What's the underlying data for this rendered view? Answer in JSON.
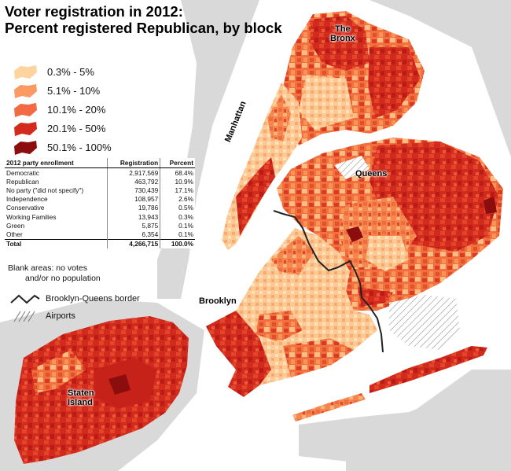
{
  "title": {
    "line1": "Voter registration in 2012:",
    "line2": "Percent registered Republican, by block"
  },
  "legend": {
    "items": [
      {
        "label": "0.3% - 5%",
        "color": "#fdd49e"
      },
      {
        "label": "5.1% - 10%",
        "color": "#fc9a64"
      },
      {
        "label": "10.1% - 20%",
        "color": "#f26a43"
      },
      {
        "label": "20.1% - 50%",
        "color": "#d32a1e"
      },
      {
        "label": "50.1% - 100%",
        "color": "#8c0d0d"
      }
    ]
  },
  "enrollment_table": {
    "headers": [
      "2012 party enrollment",
      "Registration",
      "Percent"
    ],
    "rows": [
      [
        "Democratic",
        "2,917,569",
        "68.4%"
      ],
      [
        "Republican",
        "463,792",
        "10.9%"
      ],
      [
        "No party (\"did not specify\")",
        "730,439",
        "17.1%"
      ],
      [
        "Independence",
        "108,957",
        "2.6%"
      ],
      [
        "Conservative",
        "19,786",
        "0.5%"
      ],
      [
        "Working Families",
        "13,943",
        "0.3%"
      ],
      [
        "Green",
        "5,875",
        "0.1%"
      ],
      [
        "Other",
        "6,354",
        "0.1%"
      ]
    ],
    "total": [
      "Total",
      "4,266,715",
      "100.0%"
    ]
  },
  "notes": {
    "blank_line1": "Blank areas: no votes",
    "blank_line2": "and/or no population",
    "border_label": "Brooklyn-Queens border",
    "airports_label": "Airports"
  },
  "borough_labels": {
    "bronx_line1": "The",
    "bronx_line2": "Bronx",
    "manhattan": "Manhattan",
    "queens": "Queens",
    "brooklyn": "Brooklyn",
    "staten_line1": "Staten",
    "staten_line2": "Island"
  },
  "colors": {
    "water": "#ffffff",
    "outside_land": "#d9d9d9",
    "blank_area": "#ffffff",
    "border_line": "#222222",
    "airport_hatch": "#777777"
  }
}
